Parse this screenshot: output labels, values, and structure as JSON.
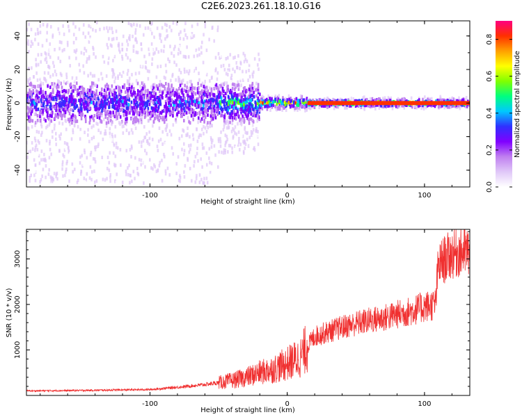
{
  "title": "C2E6.2023.261.18.10.G16",
  "colors": {
    "snr_line": "#f03030",
    "spectrum_background": "#ffffff",
    "colormap": [
      "#ffffff",
      "#e0c8f8",
      "#c080f0",
      "#8000ff",
      "#3030ff",
      "#00c8ff",
      "#00ff80",
      "#80ff00",
      "#ffff00",
      "#ffa000",
      "#ff3000",
      "#ff0080"
    ]
  },
  "chart_data": [
    {
      "type": "heatmap",
      "title": "",
      "xlabel": "Height of straight line (km)",
      "ylabel": "Frequency (Hz)",
      "xlim": [
        -190,
        133
      ],
      "ylim": [
        -50,
        49
      ],
      "xticks": [
        -100,
        0,
        100
      ],
      "yticks": [
        -40,
        -20,
        0,
        20,
        40
      ],
      "colorbar": {
        "label": "Normalized spectral amplitude",
        "range": [
          0,
          0.9
        ],
        "ticks": [
          0.0,
          0.2,
          0.4,
          0.6,
          0.8
        ]
      },
      "description_regions": [
        {
          "x_range": [
            -190,
            -50
          ],
          "freq_spread": 48,
          "core_amplitude": 0.35
        },
        {
          "x_range": [
            -50,
            -20
          ],
          "freq_spread": 30,
          "core_amplitude": 0.5
        },
        {
          "x_range": [
            -20,
            15
          ],
          "freq_spread": 6,
          "core_amplitude": 0.75
        },
        {
          "x_range": [
            15,
            133
          ],
          "freq_spread": 4,
          "core_amplitude": 0.8
        }
      ],
      "grid": false
    },
    {
      "type": "line",
      "title": "",
      "xlabel": "Height of straight line (km)",
      "ylabel": "SNR (10 * v/v)",
      "xlim": [
        -190,
        133
      ],
      "ylim": [
        0,
        3650
      ],
      "xticks": [
        -100,
        0,
        100
      ],
      "yticks": [
        1000,
        2000,
        3000
      ],
      "series": [
        {
          "x": [
            -190,
            -150,
            -100,
            -80,
            -60,
            -50,
            -40,
            -30,
            -20,
            -10,
            0,
            10,
            15,
            20,
            30,
            40,
            50,
            60,
            70,
            80,
            90,
            100,
            108,
            110,
            115,
            120,
            125,
            133
          ],
          "values": [
            100,
            110,
            130,
            180,
            240,
            280,
            330,
            400,
            500,
            580,
            700,
            850,
            1100,
            1300,
            1400,
            1500,
            1580,
            1650,
            1700,
            1780,
            1850,
            1950,
            2000,
            2850,
            3000,
            3100,
            3150,
            3150
          ]
        }
      ],
      "grid": false
    }
  ]
}
